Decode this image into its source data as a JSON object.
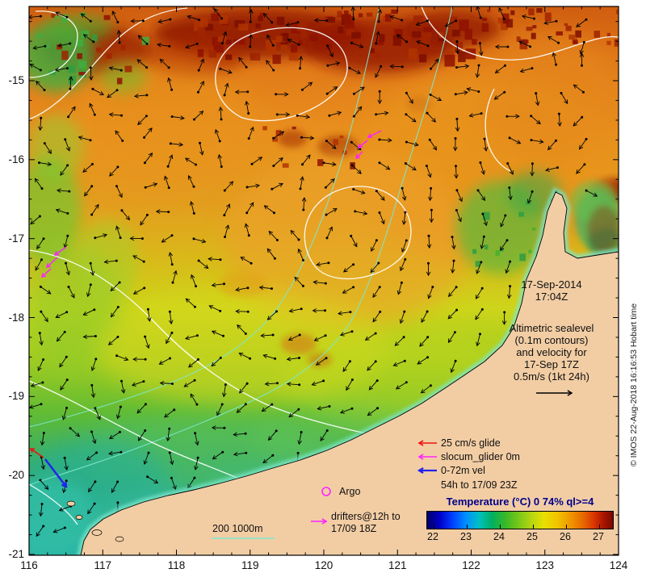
{
  "figure": {
    "copyright": "© IMOS 22-Aug-2018 16:16:53 Hobart time"
  },
  "timestamp": {
    "date": "17-Sep-2014",
    "time": "17:04Z"
  },
  "info": {
    "lines": [
      "Altimetric sealevel",
      "(0.1m contours)",
      "and velocity for",
      "17-Sep 17Z",
      "0.5m/s (1kt 24h)"
    ]
  },
  "legend": {
    "items": [
      {
        "label": "25 cm/s glide",
        "color": "#ee1111"
      },
      {
        "label": "slocum_glider 0m",
        "color": "#ff22ff"
      },
      {
        "label": "0-72m vel",
        "color": "#2222ee"
      }
    ],
    "note": "54h to 17/09 23Z",
    "argo": "Argo",
    "drifters_line1": "drifters@12h to",
    "drifters_line2": "17/09 18Z",
    "bathymetry": "200 1000m"
  },
  "colorbar": {
    "title": "Temperature (°C) 0 74% ql>=4",
    "ticks": [
      "22",
      "23",
      "24",
      "25",
      "26",
      "27"
    ]
  },
  "axes": {
    "x_ticks": [
      "116",
      "117",
      "118",
      "119",
      "120",
      "121",
      "122",
      "123",
      "124"
    ],
    "y_ticks": [
      "-15",
      "-16",
      "-17",
      "-18",
      "-19",
      "-20",
      "-21"
    ],
    "x_range": [
      116,
      124
    ],
    "y_range": [
      -21,
      -14
    ]
  }
}
